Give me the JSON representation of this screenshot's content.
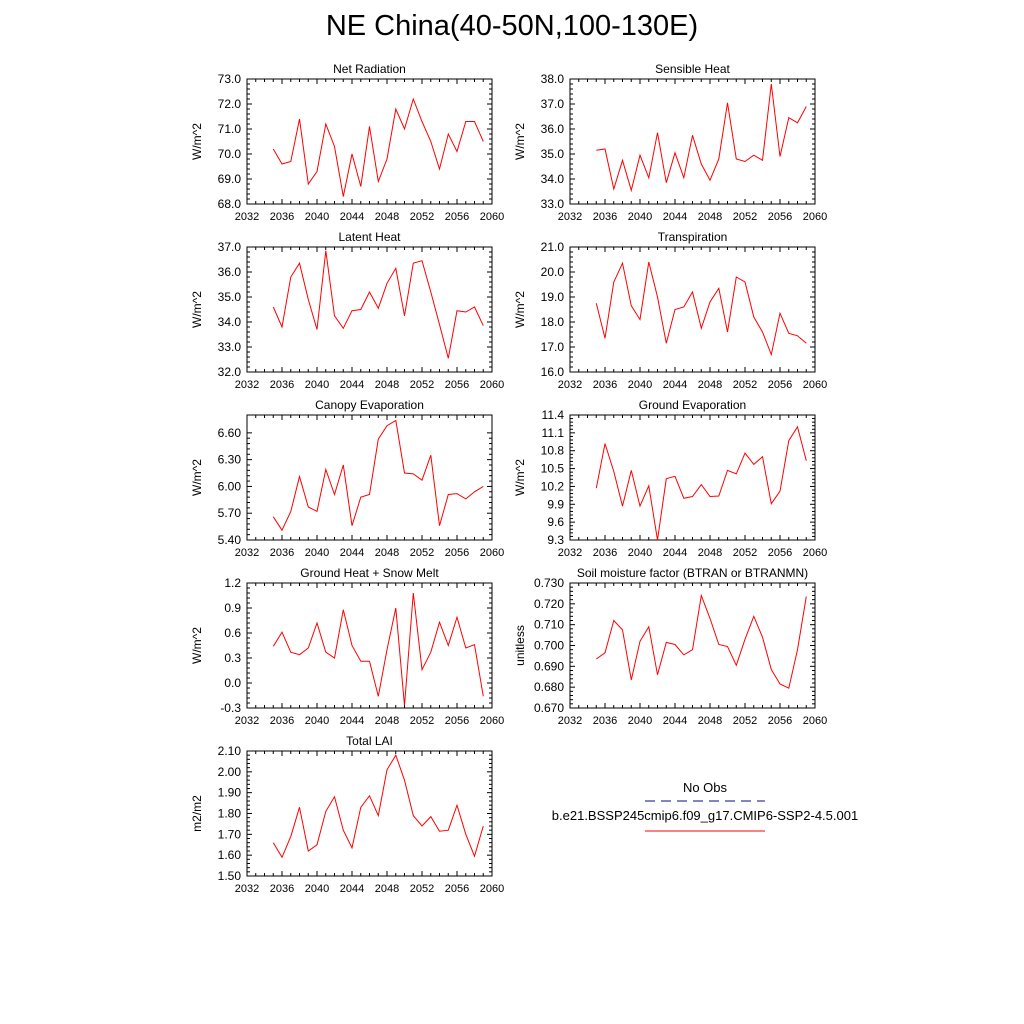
{
  "title": "NE China(40-50N,100-130E)",
  "colors": {
    "series": "#ff0000",
    "obs": "#3a3aa0",
    "axis": "#000000"
  },
  "legend": {
    "obs_label": "No Obs",
    "model_label": "b.e21.BSSP245cmip6.f09_g17.CMIP6-SSP2-4.5.001"
  },
  "chart_data": [
    {
      "type": "line",
      "title": "Net Radiation",
      "ylabel": "W/m^2",
      "xlim": [
        2032,
        2060
      ],
      "ylim": [
        68.0,
        73.0
      ],
      "xticks": [
        2032,
        2036,
        2040,
        2044,
        2048,
        2052,
        2056,
        2060
      ],
      "yticks": [
        "68.0",
        "69.0",
        "70.0",
        "71.0",
        "72.0",
        "73.0"
      ],
      "x": [
        2035,
        2036,
        2037,
        2038,
        2039,
        2040,
        2041,
        2042,
        2043,
        2044,
        2045,
        2046,
        2047,
        2048,
        2049,
        2050,
        2051,
        2052,
        2053,
        2054,
        2055,
        2056,
        2057,
        2058,
        2059
      ],
      "values": [
        70.2,
        69.6,
        69.7,
        71.4,
        68.8,
        69.3,
        71.2,
        70.3,
        68.3,
        70.0,
        68.7,
        71.1,
        68.9,
        69.8,
        71.8,
        71.0,
        72.2,
        71.3,
        70.5,
        69.4,
        70.8,
        70.1,
        71.3,
        71.3,
        70.5
      ]
    },
    {
      "type": "line",
      "title": "Sensible Heat",
      "ylabel": "W/m^2",
      "xlim": [
        2032,
        2060
      ],
      "ylim": [
        33.0,
        38.0
      ],
      "xticks": [
        2032,
        2036,
        2040,
        2044,
        2048,
        2052,
        2056,
        2060
      ],
      "yticks": [
        "33.0",
        "34.0",
        "35.0",
        "36.0",
        "37.0",
        "38.0"
      ],
      "x": [
        2035,
        2036,
        2037,
        2038,
        2039,
        2040,
        2041,
        2042,
        2043,
        2044,
        2045,
        2046,
        2047,
        2048,
        2049,
        2050,
        2051,
        2052,
        2053,
        2054,
        2055,
        2056,
        2057,
        2058,
        2059
      ],
      "values": [
        35.15,
        35.2,
        33.6,
        34.75,
        33.55,
        34.95,
        34.05,
        35.85,
        33.85,
        35.05,
        34.05,
        35.75,
        34.6,
        33.95,
        34.8,
        37.05,
        34.8,
        34.7,
        34.95,
        34.75,
        37.8,
        34.9,
        36.45,
        36.25,
        36.9
      ]
    },
    {
      "type": "line",
      "title": "Latent Heat",
      "ylabel": "W/m^2",
      "xlim": [
        2032,
        2060
      ],
      "ylim": [
        32.0,
        37.0
      ],
      "xticks": [
        2032,
        2036,
        2040,
        2044,
        2048,
        2052,
        2056,
        2060
      ],
      "yticks": [
        "32.0",
        "33.0",
        "34.0",
        "35.0",
        "36.0",
        "37.0"
      ],
      "x": [
        2035,
        2036,
        2037,
        2038,
        2039,
        2040,
        2041,
        2042,
        2043,
        2044,
        2045,
        2046,
        2047,
        2048,
        2049,
        2050,
        2051,
        2052,
        2053,
        2054,
        2055,
        2056,
        2057,
        2058,
        2059
      ],
      "values": [
        34.6,
        33.8,
        35.8,
        36.35,
        34.9,
        33.7,
        36.85,
        34.25,
        33.75,
        34.45,
        34.5,
        35.2,
        34.55,
        35.55,
        36.15,
        34.25,
        36.35,
        36.45,
        35.2,
        33.9,
        32.55,
        34.45,
        34.4,
        34.6,
        33.85
      ]
    },
    {
      "type": "line",
      "title": "Transpiration",
      "ylabel": "W/m^2",
      "xlim": [
        2032,
        2060
      ],
      "ylim": [
        16.0,
        21.0
      ],
      "xticks": [
        2032,
        2036,
        2040,
        2044,
        2048,
        2052,
        2056,
        2060
      ],
      "yticks": [
        "16.0",
        "17.0",
        "18.0",
        "19.0",
        "20.0",
        "21.0"
      ],
      "x": [
        2035,
        2036,
        2037,
        2038,
        2039,
        2040,
        2041,
        2042,
        2043,
        2044,
        2045,
        2046,
        2047,
        2048,
        2049,
        2050,
        2051,
        2052,
        2053,
        2054,
        2055,
        2056,
        2057,
        2058,
        2059
      ],
      "values": [
        18.75,
        17.35,
        19.6,
        20.35,
        18.65,
        18.1,
        20.4,
        19.0,
        17.15,
        18.5,
        18.6,
        19.2,
        17.75,
        18.8,
        19.35,
        17.6,
        19.8,
        19.6,
        18.2,
        17.6,
        16.7,
        18.35,
        17.55,
        17.45,
        17.15
      ]
    },
    {
      "type": "line",
      "title": "Canopy Evaporation",
      "ylabel": "W/m^2",
      "xlim": [
        2032,
        2060
      ],
      "ylim": [
        5.4,
        6.8
      ],
      "xticks": [
        2032,
        2036,
        2040,
        2044,
        2048,
        2052,
        2056,
        2060
      ],
      "yticks": [
        "5.40",
        "5.70",
        "6.00",
        "6.30",
        "6.60"
      ],
      "ytick_values": [
        5.4,
        5.7,
        6.0,
        6.3,
        6.6
      ],
      "x": [
        2035,
        2036,
        2037,
        2038,
        2039,
        2040,
        2041,
        2042,
        2043,
        2044,
        2045,
        2046,
        2047,
        2048,
        2049,
        2050,
        2051,
        2052,
        2053,
        2054,
        2055,
        2056,
        2057,
        2058,
        2059
      ],
      "values": [
        5.66,
        5.51,
        5.72,
        6.11,
        5.77,
        5.72,
        6.19,
        5.91,
        6.24,
        5.56,
        5.88,
        5.91,
        6.53,
        6.68,
        6.74,
        6.15,
        6.14,
        6.07,
        6.35,
        5.56,
        5.91,
        5.92,
        5.86,
        5.94,
        6.0
      ]
    },
    {
      "type": "line",
      "title": "Ground Evaporation",
      "ylabel": "W/m^2",
      "xlim": [
        2032,
        2060
      ],
      "ylim": [
        9.3,
        11.4
      ],
      "xticks": [
        2032,
        2036,
        2040,
        2044,
        2048,
        2052,
        2056,
        2060
      ],
      "yticks": [
        "9.3",
        "9.6",
        "9.9",
        "10.2",
        "10.5",
        "10.8",
        "11.1",
        "11.4"
      ],
      "ytick_values": [
        9.3,
        9.6,
        9.9,
        10.2,
        10.5,
        10.8,
        11.1,
        11.4
      ],
      "x": [
        2035,
        2036,
        2037,
        2038,
        2039,
        2040,
        2041,
        2042,
        2043,
        2044,
        2045,
        2046,
        2047,
        2048,
        2049,
        2050,
        2051,
        2052,
        2053,
        2054,
        2055,
        2056,
        2057,
        2058,
        2059
      ],
      "values": [
        10.17,
        10.92,
        10.45,
        9.87,
        10.47,
        9.87,
        10.21,
        9.3,
        10.33,
        10.37,
        10.0,
        10.03,
        10.23,
        10.03,
        10.04,
        10.47,
        10.41,
        10.76,
        10.57,
        10.7,
        9.91,
        10.12,
        10.97,
        11.2,
        10.63
      ]
    },
    {
      "type": "line",
      "title": "Ground Heat + Snow Melt",
      "ylabel": "W/m^2",
      "xlim": [
        2032,
        2060
      ],
      "ylim": [
        -0.3,
        1.2
      ],
      "xticks": [
        2032,
        2036,
        2040,
        2044,
        2048,
        2052,
        2056,
        2060
      ],
      "yticks": [
        "-0.3",
        "0.0",
        "0.3",
        "0.6",
        "0.9",
        "1.2"
      ],
      "ytick_values": [
        -0.3,
        0.0,
        0.3,
        0.6,
        0.9,
        1.2
      ],
      "x": [
        2035,
        2036,
        2037,
        2038,
        2039,
        2040,
        2041,
        2042,
        2043,
        2044,
        2045,
        2046,
        2047,
        2048,
        2049,
        2050,
        2051,
        2052,
        2053,
        2054,
        2055,
        2056,
        2057,
        2058,
        2059
      ],
      "values": [
        0.44,
        0.61,
        0.37,
        0.34,
        0.42,
        0.72,
        0.37,
        0.3,
        0.88,
        0.45,
        0.26,
        0.26,
        -0.16,
        0.4,
        0.9,
        -0.27,
        1.08,
        0.16,
        0.37,
        0.73,
        0.45,
        0.79,
        0.42,
        0.46,
        -0.16
      ]
    },
    {
      "type": "line",
      "title": "Soil moisture factor (BTRAN or BTRANMN)",
      "ylabel": "unitless",
      "xlim": [
        2032,
        2060
      ],
      "ylim": [
        0.67,
        0.73
      ],
      "xticks": [
        2032,
        2036,
        2040,
        2044,
        2048,
        2052,
        2056,
        2060
      ],
      "yticks": [
        "0.670",
        "0.680",
        "0.690",
        "0.700",
        "0.710",
        "0.720",
        "0.730"
      ],
      "ytick_values": [
        0.67,
        0.68,
        0.69,
        0.7,
        0.71,
        0.72,
        0.73
      ],
      "x": [
        2035,
        2036,
        2037,
        2038,
        2039,
        2040,
        2041,
        2042,
        2043,
        2044,
        2045,
        2046,
        2047,
        2048,
        2049,
        2050,
        2051,
        2052,
        2053,
        2054,
        2055,
        2056,
        2057,
        2058,
        2059
      ],
      "values": [
        0.6935,
        0.6965,
        0.712,
        0.7075,
        0.6835,
        0.702,
        0.709,
        0.686,
        0.7015,
        0.7005,
        0.6955,
        0.698,
        0.724,
        0.713,
        0.7005,
        0.6995,
        0.6905,
        0.703,
        0.714,
        0.704,
        0.6885,
        0.6815,
        0.6795,
        0.698,
        0.7235
      ]
    },
    {
      "type": "line",
      "title": "Total LAI",
      "ylabel": "m2/m2",
      "xlim": [
        2032,
        2060
      ],
      "ylim": [
        1.5,
        2.1
      ],
      "xticks": [
        2032,
        2036,
        2040,
        2044,
        2048,
        2052,
        2056,
        2060
      ],
      "yticks": [
        "1.50",
        "1.60",
        "1.70",
        "1.80",
        "1.90",
        "2.00",
        "2.10"
      ],
      "ytick_values": [
        1.5,
        1.6,
        1.7,
        1.8,
        1.9,
        2.0,
        2.1
      ],
      "x": [
        2035,
        2036,
        2037,
        2038,
        2039,
        2040,
        2041,
        2042,
        2043,
        2044,
        2045,
        2046,
        2047,
        2048,
        2049,
        2050,
        2051,
        2052,
        2053,
        2054,
        2055,
        2056,
        2057,
        2058,
        2059
      ],
      "values": [
        1.66,
        1.59,
        1.69,
        1.83,
        1.62,
        1.65,
        1.81,
        1.88,
        1.72,
        1.635,
        1.83,
        1.885,
        1.79,
        2.01,
        2.08,
        1.96,
        1.79,
        1.74,
        1.785,
        1.715,
        1.72,
        1.84,
        1.7,
        1.595,
        1.74
      ]
    }
  ]
}
